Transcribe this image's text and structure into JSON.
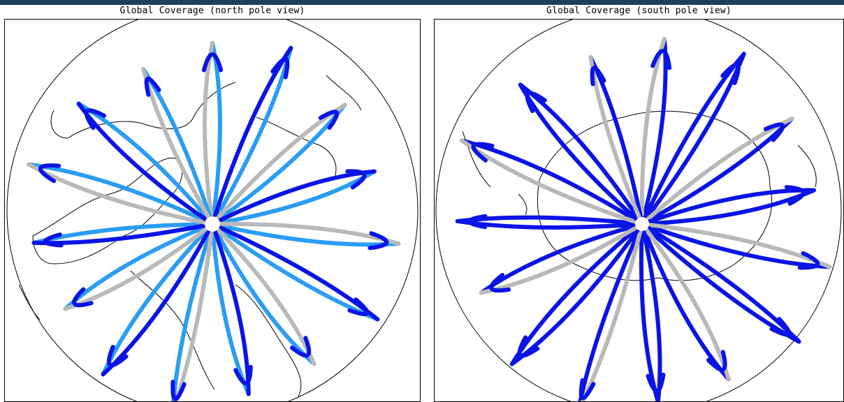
{
  "maps": [
    {
      "title": "Global Coverage (north pole view)",
      "projection": "polar stereographic",
      "pole": "north",
      "track_colors": {
        "primary": "#0a14e6",
        "secondary": "#2a9df4",
        "tertiary": "#b9b9b9"
      },
      "coastline_color": "#000000"
    },
    {
      "title": "Global Coverage (south pole view)",
      "projection": "polar stereographic",
      "pole": "south",
      "track_colors": {
        "primary": "#0a14e6",
        "secondary": "#2a9df4",
        "tertiary": "#b9b9b9"
      },
      "coastline_color": "#000000"
    }
  ]
}
